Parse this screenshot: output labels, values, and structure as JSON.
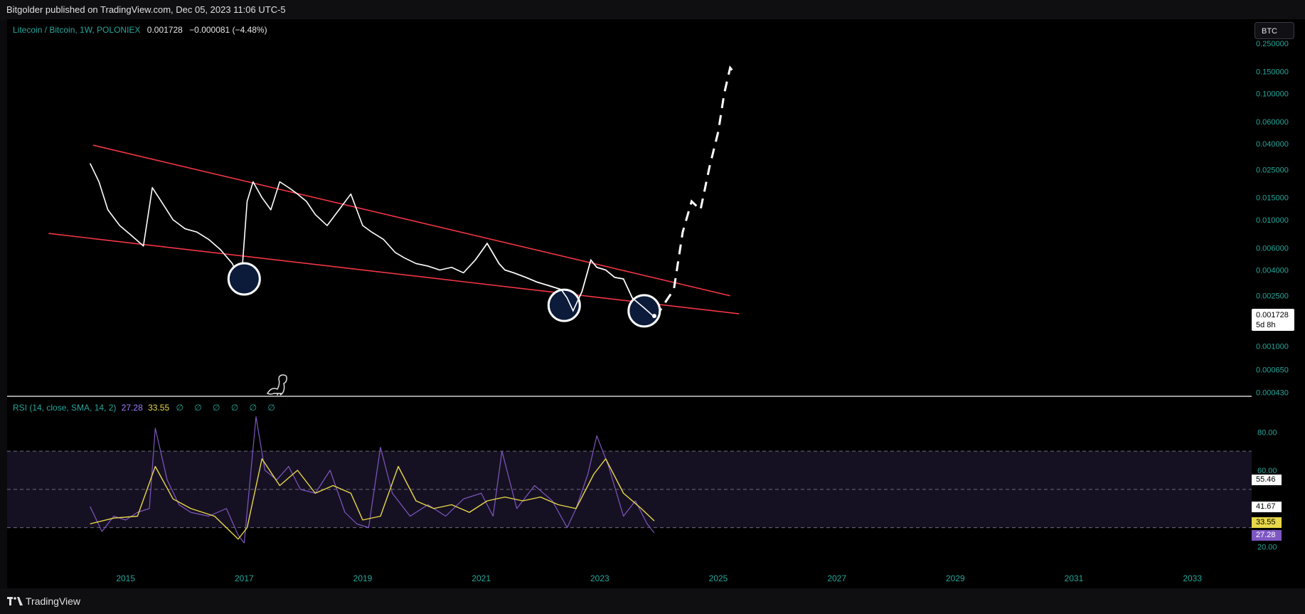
{
  "header": {
    "publisher_line": "Bitgolder published on TradingView.com, Dec 05, 2023 11:06 UTC-5"
  },
  "footer": {
    "brand": "TradingView"
  },
  "main_legend": {
    "symbol": "Litecoin / Bitcoin, 1W, POLONIEX",
    "last": "0.001728",
    "change": "−0.000081 (−4.48%)"
  },
  "rsi_legend": {
    "label": "RSI (14, close, SMA, 14, 2)",
    "rsi_value": "27.28",
    "sma_value": "33.55",
    "null_values": "∅ ∅ ∅ ∅ ∅ ∅"
  },
  "currency_button": {
    "label": "BTC"
  },
  "price_tag": {
    "value": "0.001728",
    "countdown": "5d 8h"
  },
  "rsi_tags": {
    "upper_band_value": "55.46",
    "lower_band_value": "41.67",
    "sma_value": "33.55",
    "rsi_value": "27.28"
  },
  "colors": {
    "background": "#000000",
    "price_line": "#ffffff",
    "trendline": "#f23645",
    "circle_fill": "#0d1b3a",
    "rsi_line": "#7e57c2",
    "rsi_sma": "#e8d84a",
    "axis_text": "#26a69a",
    "band": "#1a1428"
  },
  "icons": {
    "dino": "dino-icon",
    "logo": "tradingview-logo-icon"
  },
  "chart_data": [
    {
      "type": "line",
      "scale": "log",
      "title": "Litecoin / Bitcoin, 1W, POLONIEX",
      "y_ticks": [
        "0.250000",
        "0.150000",
        "0.100000",
        "0.060000",
        "0.040000",
        "0.025000",
        "0.015000",
        "0.010000",
        "0.006000",
        "0.004000",
        "0.002500",
        "0.001000",
        "0.000650",
        "0.000430"
      ],
      "y_tick_values": [
        0.25,
        0.15,
        0.1,
        0.06,
        0.04,
        0.025,
        0.015,
        0.01,
        0.006,
        0.004,
        0.0025,
        0.001,
        0.00065,
        0.00043
      ],
      "ylim": [
        0.00041,
        0.27
      ],
      "x_ticks": [
        "2015",
        "2017",
        "2019",
        "2021",
        "2023",
        "2025",
        "2027",
        "2029",
        "2031",
        "2033"
      ],
      "x_tick_years": [
        2015,
        2017,
        2019,
        2021,
        2023,
        2025,
        2027,
        2029,
        2031,
        2033
      ],
      "xlim": [
        2013.0,
        2034.0
      ],
      "series": [
        {
          "name": "LTCBTC",
          "x": [
            2014.4,
            2014.55,
            2014.7,
            2014.9,
            2015.1,
            2015.3,
            2015.45,
            2015.6,
            2015.8,
            2016.0,
            2016.2,
            2016.4,
            2016.6,
            2016.8,
            2016.95,
            2017.05,
            2017.15,
            2017.3,
            2017.45,
            2017.6,
            2017.75,
            2017.9,
            2018.05,
            2018.2,
            2018.4,
            2018.6,
            2018.8,
            2019.0,
            2019.15,
            2019.35,
            2019.55,
            2019.7,
            2019.9,
            2020.1,
            2020.3,
            2020.5,
            2020.7,
            2020.9,
            2021.1,
            2021.3,
            2021.4,
            2021.55,
            2021.75,
            2021.95,
            2022.15,
            2022.35,
            2022.45,
            2022.55,
            2022.7,
            2022.85,
            2022.95,
            2023.1,
            2023.25,
            2023.4,
            2023.55,
            2023.75,
            2023.92
          ],
          "y": [
            0.028,
            0.02,
            0.012,
            0.009,
            0.0075,
            0.0062,
            0.018,
            0.014,
            0.01,
            0.0085,
            0.008,
            0.007,
            0.0058,
            0.0045,
            0.0032,
            0.014,
            0.02,
            0.015,
            0.012,
            0.02,
            0.018,
            0.016,
            0.014,
            0.011,
            0.009,
            0.012,
            0.016,
            0.009,
            0.008,
            0.007,
            0.0055,
            0.005,
            0.0045,
            0.0043,
            0.004,
            0.0042,
            0.0038,
            0.0048,
            0.0065,
            0.0045,
            0.004,
            0.0038,
            0.0035,
            0.0032,
            0.003,
            0.0028,
            0.0024,
            0.0019,
            0.0027,
            0.0048,
            0.0042,
            0.004,
            0.0035,
            0.0034,
            0.0024,
            0.002,
            0.0017
          ]
        },
        {
          "name": "trendline-upper",
          "x": [
            2014.45,
            2025.2
          ],
          "y": [
            0.039,
            0.0025
          ]
        },
        {
          "name": "trendline-lower",
          "x": [
            2013.7,
            2025.35
          ],
          "y": [
            0.0078,
            0.0018
          ]
        },
        {
          "name": "projection",
          "x": [
            2023.95,
            2024.1,
            2024.25,
            2024.4,
            2024.55,
            2024.7,
            2024.85,
            2025.0,
            2025.1,
            2025.2,
            2025.3
          ],
          "y": [
            0.0017,
            0.0022,
            0.0028,
            0.008,
            0.014,
            0.012,
            0.026,
            0.05,
            0.1,
            0.16,
            0.14
          ]
        }
      ],
      "highlight_circles": [
        {
          "x": 2017.0,
          "y": 0.0034
        },
        {
          "x": 2022.4,
          "y": 0.0021
        },
        {
          "x": 2023.75,
          "y": 0.0019
        }
      ],
      "last_price": 0.001728
    },
    {
      "type": "line",
      "title": "RSI (14, close, SMA, 14, 2)",
      "y_ticks": [
        "80.00",
        "60.00",
        "20.00"
      ],
      "y_tick_values": [
        80,
        60,
        20
      ],
      "ylim": [
        12,
        92
      ],
      "bands": [
        70,
        50,
        30
      ],
      "xlim": [
        2013.0,
        2034.0
      ],
      "series": [
        {
          "name": "RSI",
          "x": [
            2014.4,
            2014.6,
            2014.8,
            2015.0,
            2015.2,
            2015.4,
            2015.5,
            2015.7,
            2015.9,
            2016.1,
            2016.4,
            2016.7,
            2016.9,
            2017.0,
            2017.2,
            2017.35,
            2017.55,
            2017.75,
            2017.95,
            2018.2,
            2018.45,
            2018.7,
            2018.9,
            2019.1,
            2019.3,
            2019.5,
            2019.8,
            2020.1,
            2020.4,
            2020.7,
            2021.0,
            2021.2,
            2021.35,
            2021.6,
            2021.9,
            2022.2,
            2022.45,
            2022.6,
            2022.8,
            2022.95,
            2023.15,
            2023.4,
            2023.6,
            2023.8,
            2023.92
          ],
          "y": [
            41,
            28,
            36,
            34,
            38,
            40,
            82,
            55,
            42,
            38,
            36,
            40,
            26,
            22,
            88,
            60,
            55,
            62,
            50,
            48,
            60,
            38,
            32,
            30,
            72,
            48,
            36,
            42,
            36,
            45,
            48,
            36,
            70,
            40,
            52,
            44,
            30,
            40,
            58,
            78,
            62,
            36,
            44,
            32,
            27.28
          ]
        },
        {
          "name": "SMA",
          "x": [
            2014.4,
            2014.8,
            2015.2,
            2015.5,
            2015.8,
            2016.1,
            2016.5,
            2016.9,
            2017.05,
            2017.3,
            2017.6,
            2017.9,
            2018.2,
            2018.5,
            2018.8,
            2019.0,
            2019.3,
            2019.6,
            2019.9,
            2020.2,
            2020.5,
            2020.8,
            2021.1,
            2021.4,
            2021.7,
            2022.0,
            2022.3,
            2022.6,
            2022.9,
            2023.1,
            2023.4,
            2023.7,
            2023.92
          ],
          "y": [
            32,
            35,
            36,
            62,
            45,
            40,
            36,
            24,
            30,
            66,
            52,
            60,
            48,
            52,
            48,
            34,
            36,
            62,
            44,
            40,
            42,
            38,
            44,
            46,
            44,
            46,
            42,
            40,
            58,
            66,
            48,
            40,
            33.55
          ]
        }
      ]
    }
  ]
}
